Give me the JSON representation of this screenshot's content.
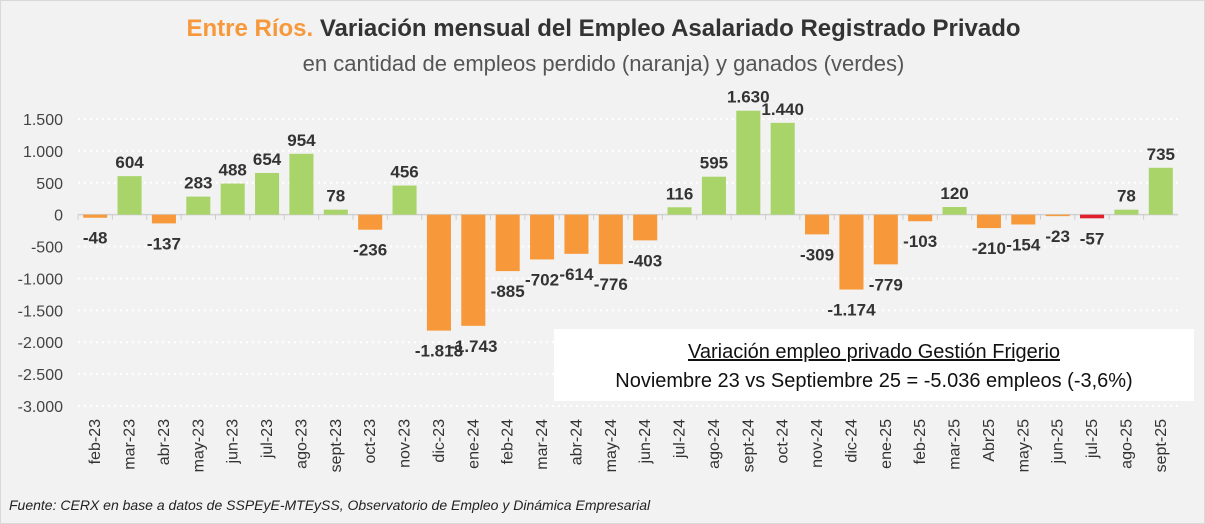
{
  "chart_data": {
    "type": "bar",
    "title_highlight": "Entre Ríos.",
    "title": "Variación mensual del Empleo Asalariado Registrado Privado",
    "subtitle": "en cantidad de empleos perdido (naranja) y ganados (verdes)",
    "categories": [
      "feb-23",
      "mar-23",
      "abr-23",
      "may-23",
      "jun-23",
      "jul-23",
      "ago-23",
      "sept-23",
      "oct-23",
      "nov-23",
      "dic-23",
      "ene-24",
      "feb-24",
      "mar-24",
      "abr-24",
      "may-24",
      "jun-24",
      "jul-24",
      "ago-24",
      "sept-24",
      "oct-24",
      "nov-24",
      "dic-24",
      "ene-25",
      "feb-25",
      "mar-25",
      "Abr25",
      "may-25",
      "jun-25",
      "jul-25",
      "ago-25",
      "sept-25"
    ],
    "values": [
      -48,
      604,
      -137,
      283,
      488,
      654,
      954,
      78,
      -236,
      456,
      -1818,
      -1743,
      -885,
      -702,
      -614,
      -776,
      -403,
      116,
      595,
      1630,
      1440,
      -309,
      -1174,
      -779,
      -103,
      120,
      -210,
      -154,
      -23,
      -57,
      78,
      735
    ],
    "data_labels": [
      "-48",
      "604",
      "-137",
      "283",
      "488",
      "654",
      "954",
      "78",
      "-236",
      "456",
      "-1.818",
      "-1.743",
      "-885",
      "-702",
      "-614",
      "-776",
      "-403",
      "116",
      "595",
      "1.630",
      "1.440",
      "-309",
      "-1.174",
      "-779",
      "-103",
      "120",
      "-210",
      "-154",
      "-23",
      "-57",
      "78",
      "735"
    ],
    "highlight_index": 29,
    "yticks": [
      1500,
      1000,
      500,
      0,
      -500,
      -1000,
      -1500,
      -2000,
      -2500,
      -3000
    ],
    "ytick_labels": [
      "1.500",
      "1.000",
      "500",
      "0",
      "-500",
      "-1.000",
      "-1.500",
      "-2.000",
      "-2.500",
      "-3.000"
    ],
    "ylim": [
      -3000,
      1500
    ],
    "grid": "dotted horizontal",
    "colors": {
      "positive": "#a9d46a",
      "negative": "#f7993a",
      "highlight": "#e0202a"
    }
  },
  "note": {
    "line1": "Variación empleo privado Gestión Frigerio",
    "line2": "Noviembre 23 vs Septiembre 25 = -5.036 empleos (-3,6%)"
  },
  "source": "Fuente: CERX en base a datos de SSPEyE-MTEySS, Observatorio de Empleo y Dinámica Empresarial"
}
